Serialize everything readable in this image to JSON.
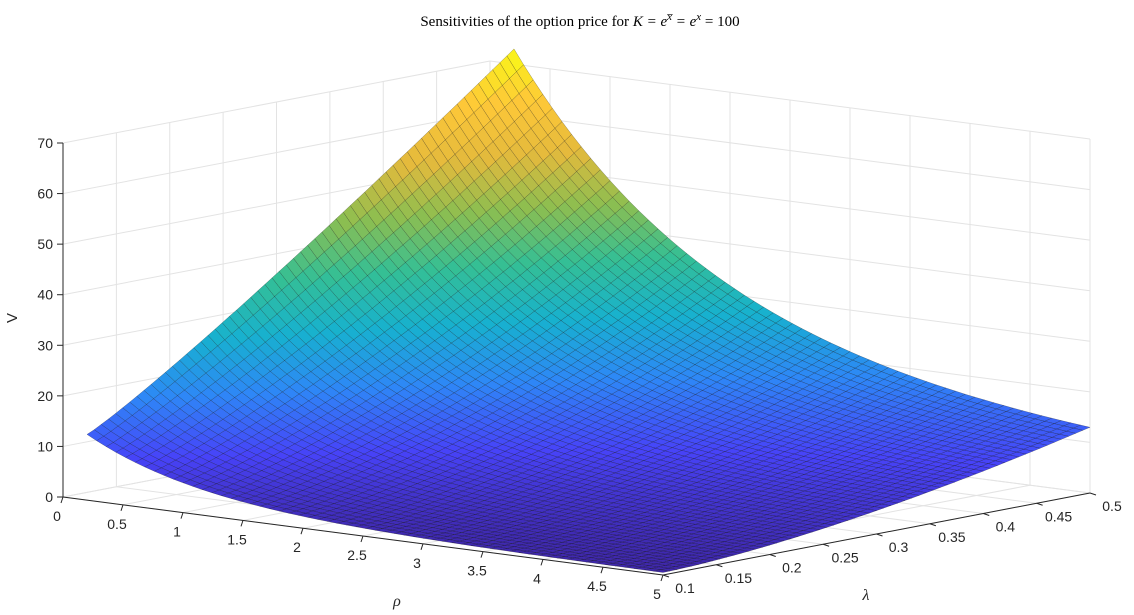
{
  "chart_data": {
    "type": "surface",
    "title_parts": {
      "prefix": "Sensitivities of the option price for ",
      "math": "K = e",
      "sup1": "x̅",
      "mid": " = e",
      "sup2": "x",
      "suffix": " = 100"
    },
    "xlabel": "ρ",
    "ylabel": "λ",
    "zlabel": "V",
    "xlim": [
      0,
      5
    ],
    "ylim": [
      0.1,
      0.5
    ],
    "zlim": [
      0,
      70
    ],
    "x_ticks": [
      "0",
      "0.5",
      "1",
      "1.5",
      "2",
      "2.5",
      "3",
      "3.5",
      "4",
      "4.5",
      "5"
    ],
    "y_ticks": [
      "0.1",
      "0.15",
      "0.2",
      "0.25",
      "0.3",
      "0.35",
      "0.4",
      "0.45",
      "0.5"
    ],
    "z_ticks": [
      "0",
      "10",
      "20",
      "30",
      "40",
      "50",
      "60",
      "70"
    ],
    "colormap": [
      "#3e26a8",
      "#4743f8",
      "#2e87f7",
      "#17b1cf",
      "#34bf95",
      "#8dbe50",
      "#e5ba3c",
      "#fec838",
      "#f9fb15"
    ],
    "grid": true,
    "corner_values": [
      {
        "rho": 0.2,
        "lambda": 0.1,
        "V": 13
      },
      {
        "rho": 0.2,
        "lambda": 0.5,
        "V": 73
      },
      {
        "rho": 5.0,
        "lambda": 0.1,
        "V": 0.5
      },
      {
        "rho": 5.0,
        "lambda": 0.5,
        "V": 13
      }
    ]
  }
}
